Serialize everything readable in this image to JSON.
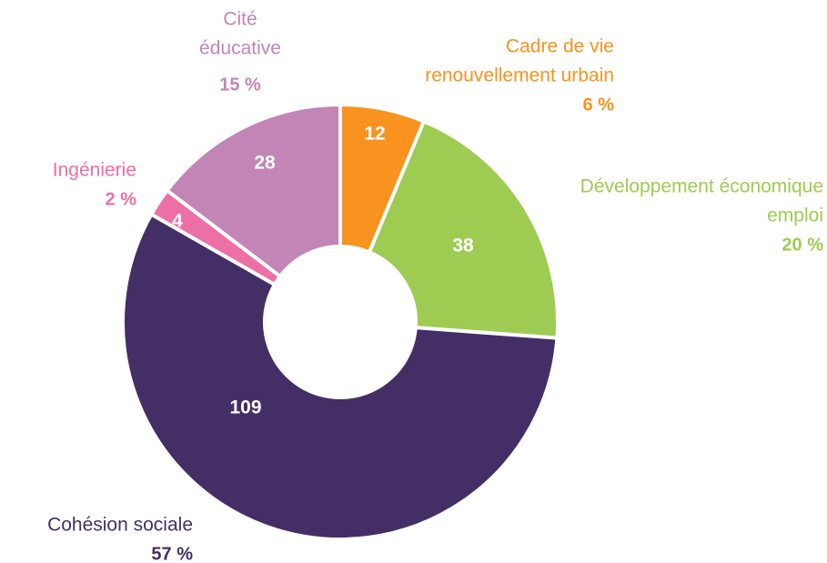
{
  "chart_data": {
    "type": "donut",
    "categories": [
      [
        "Cadre de vie",
        "renouvellement urbain"
      ],
      [
        "Développement économique",
        "emploi"
      ],
      [
        "Cohésion sociale"
      ],
      [
        "Ingénierie"
      ],
      [
        "Cité",
        "éducative"
      ]
    ],
    "values": [
      12,
      38,
      109,
      4,
      28
    ],
    "share_labels": [
      "6 %",
      "20 %",
      "57 %",
      "2 %",
      "15 %"
    ],
    "colors": [
      "#f7931e",
      "#9ecb52",
      "#432f66",
      "#ec6fa5",
      "#c285b6"
    ]
  }
}
